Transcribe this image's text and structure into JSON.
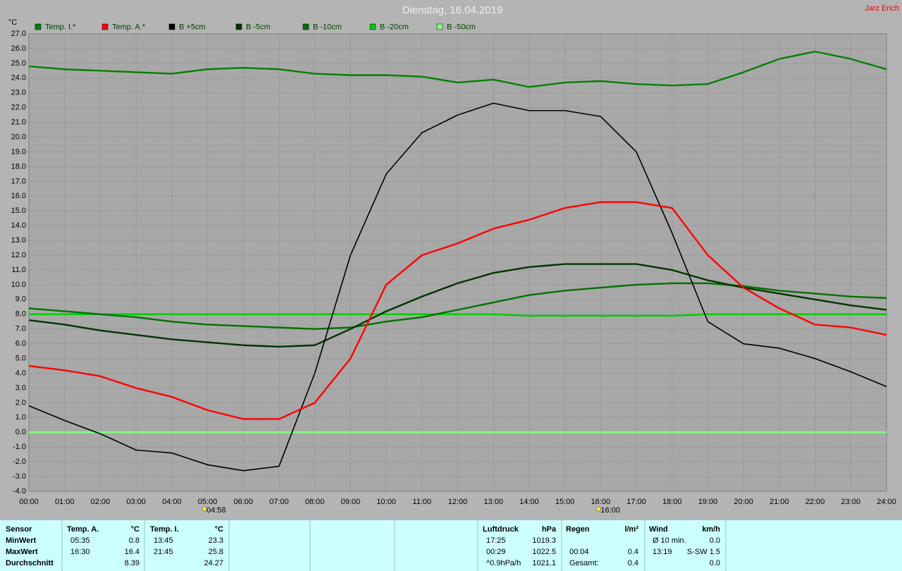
{
  "chart_data": {
    "type": "line",
    "title": "Dienstag, 16.04.2019",
    "author": "Jarz Erich",
    "y_unit": "°C",
    "x": [
      0,
      1,
      2,
      3,
      4,
      5,
      6,
      7,
      8,
      9,
      10,
      11,
      12,
      13,
      14,
      15,
      16,
      17,
      18,
      19,
      20,
      21,
      22,
      23,
      24
    ],
    "xlim": [
      0,
      24
    ],
    "xticks": [
      {
        "value": 0,
        "label": "00:00"
      },
      {
        "value": 1,
        "label": "01:00"
      },
      {
        "value": 2,
        "label": "02:00"
      },
      {
        "value": 3,
        "label": "03:00"
      },
      {
        "value": 4,
        "label": "04:00"
      },
      {
        "value": 5,
        "label": "05:00"
      },
      {
        "value": 6,
        "label": "06:00"
      },
      {
        "value": 7,
        "label": "07:00"
      },
      {
        "value": 8,
        "label": "08:00"
      },
      {
        "value": 9,
        "label": "09:00"
      },
      {
        "value": 10,
        "label": "10:00"
      },
      {
        "value": 11,
        "label": "11:00"
      },
      {
        "value": 12,
        "label": "12:00"
      },
      {
        "value": 13,
        "label": "13:00"
      },
      {
        "value": 14,
        "label": "14:00"
      },
      {
        "value": 15,
        "label": "15:00"
      },
      {
        "value": 16,
        "label": "16:00"
      },
      {
        "value": 17,
        "label": "17:00"
      },
      {
        "value": 18,
        "label": "18:00"
      },
      {
        "value": 19,
        "label": "19:00"
      },
      {
        "value": 20,
        "label": "20:00"
      },
      {
        "value": 21,
        "label": "21:00"
      },
      {
        "value": 22,
        "label": "22:00"
      },
      {
        "value": 23,
        "label": "23:00"
      },
      {
        "value": 24,
        "label": "24:00"
      }
    ],
    "ylim": [
      -4,
      27
    ],
    "yticks": [
      {
        "value": 27,
        "label": "27.0"
      },
      {
        "value": 26,
        "label": "26.0"
      },
      {
        "value": 25,
        "label": "25.0"
      },
      {
        "value": 24,
        "label": "24.0"
      },
      {
        "value": 23,
        "label": "23.0"
      },
      {
        "value": 22,
        "label": "22.0"
      },
      {
        "value": 21,
        "label": "21.0"
      },
      {
        "value": 20,
        "label": "20.0"
      },
      {
        "value": 19,
        "label": "19.0"
      },
      {
        "value": 18,
        "label": "18.0"
      },
      {
        "value": 17,
        "label": "17.0"
      },
      {
        "value": 16,
        "label": "16.0"
      },
      {
        "value": 15,
        "label": "15.0"
      },
      {
        "value": 14,
        "label": "14.0"
      },
      {
        "value": 13,
        "label": "13.0"
      },
      {
        "value": 12,
        "label": "12.0"
      },
      {
        "value": 11,
        "label": "11.0"
      },
      {
        "value": 10,
        "label": "10.0"
      },
      {
        "value": 9,
        "label": "9.0"
      },
      {
        "value": 8,
        "label": "8.0"
      },
      {
        "value": 7,
        "label": "7.0"
      },
      {
        "value": 6,
        "label": "6.0"
      },
      {
        "value": 5,
        "label": "5.0"
      },
      {
        "value": 4,
        "label": "4.0"
      },
      {
        "value": 3,
        "label": "3.0"
      },
      {
        "value": 2,
        "label": "2.0"
      },
      {
        "value": 1,
        "label": "1.0"
      },
      {
        "value": 0,
        "label": "0.0"
      },
      {
        "value": -1,
        "label": "-1.0"
      },
      {
        "value": -2,
        "label": "-2.0"
      },
      {
        "value": -3,
        "label": "-3.0"
      },
      {
        "value": -4,
        "label": "-4.0"
      }
    ],
    "grid": true,
    "annotations": [
      {
        "x": 4.97,
        "text": "04:58"
      },
      {
        "x": 16.0,
        "text": "16:00"
      }
    ],
    "series": [
      {
        "name": "Temp. I.*",
        "color": "#008000",
        "values": [
          24.8,
          24.6,
          24.5,
          24.4,
          24.3,
          24.6,
          24.7,
          24.6,
          24.3,
          24.2,
          24.2,
          24.1,
          23.7,
          23.9,
          23.4,
          23.7,
          23.8,
          23.6,
          23.5,
          23.6,
          24.4,
          25.3,
          25.8,
          25.3,
          24.6
        ]
      },
      {
        "name": "Temp. A.*",
        "color": "#ff0000",
        "values": [
          4.5,
          4.2,
          3.8,
          3.0,
          2.4,
          1.5,
          0.9,
          0.9,
          2.0,
          5.0,
          10.0,
          12.0,
          12.8,
          13.8,
          14.4,
          15.2,
          15.6,
          15.6,
          15.2,
          12.0,
          9.8,
          8.4,
          7.3,
          7.1,
          6.6
        ]
      },
      {
        "name": "B +5cm",
        "color": "#000000",
        "values": [
          1.8,
          0.8,
          -0.1,
          -1.2,
          -1.4,
          -2.2,
          -2.6,
          -2.3,
          4.0,
          12.0,
          17.5,
          20.3,
          21.5,
          22.3,
          21.8,
          21.8,
          21.4,
          19.0,
          13.5,
          7.5,
          6.0,
          5.7,
          5.0,
          4.1,
          3.1
        ]
      },
      {
        "name": "B -5cm",
        "color": "#003300",
        "values": [
          7.6,
          7.3,
          6.9,
          6.6,
          6.3,
          6.1,
          5.9,
          5.8,
          5.9,
          7.0,
          8.2,
          9.2,
          10.1,
          10.8,
          11.2,
          11.4,
          11.4,
          11.4,
          11.0,
          10.3,
          9.8,
          9.4,
          9.0,
          8.6,
          8.3
        ]
      },
      {
        "name": "B -10cm",
        "color": "#007000",
        "values": [
          8.4,
          8.2,
          8.0,
          7.8,
          7.5,
          7.3,
          7.2,
          7.1,
          7.0,
          7.1,
          7.5,
          7.8,
          8.3,
          8.8,
          9.3,
          9.6,
          9.8,
          10.0,
          10.1,
          10.1,
          9.9,
          9.6,
          9.4,
          9.2,
          9.1
        ]
      },
      {
        "name": "B -20cm",
        "color": "#00cc00",
        "values": [
          8.0,
          8.0,
          8.0,
          8.0,
          8.0,
          8.0,
          8.0,
          8.0,
          8.0,
          8.0,
          8.0,
          8.0,
          8.0,
          8.0,
          7.9,
          7.9,
          7.9,
          7.9,
          7.9,
          8.0,
          8.0,
          8.0,
          8.0,
          8.0,
          8.0
        ]
      },
      {
        "name": "B -50cm",
        "color": "#80ff80",
        "values": [
          0,
          0,
          0,
          0,
          0,
          0,
          0,
          0,
          0,
          0,
          0,
          0,
          0,
          0,
          0,
          0,
          0,
          0,
          0,
          0,
          0,
          0,
          0,
          0,
          0
        ]
      }
    ]
  },
  "table": {
    "sensor": {
      "title": "Sensor",
      "min": "MinWert",
      "max": "MaxWert",
      "avg": "Durchschnitt"
    },
    "groups": [
      {
        "title": "Temp. A.",
        "unit": "°C",
        "min": {
          "time": "05:35",
          "value": "0.8"
        },
        "max": {
          "time": "16:30",
          "value": "16.4"
        },
        "avg": {
          "value": "8.39"
        }
      },
      {
        "title": "Temp. I.",
        "unit": "°C",
        "min": {
          "time": "13:45",
          "value": "23.3"
        },
        "max": {
          "time": "21:45",
          "value": "25.8"
        },
        "avg": {
          "value": "24.27"
        }
      },
      {
        "title": "Luftdruck",
        "unit": "hPa",
        "min": {
          "time": "17:25",
          "value": "1019.3"
        },
        "max": {
          "time": "00:29",
          "value": "1022.5"
        },
        "avg": {
          "time": "^0.9hPa/h",
          "value": "1021.1"
        }
      },
      {
        "title": "Regen",
        "unit": "l/m²",
        "max": {
          "time": "00:04",
          "value": "0.4"
        },
        "avg": {
          "time": "Gesamt:",
          "value": "0.4"
        }
      },
      {
        "title": "Wind",
        "unit": "km/h",
        "min": {
          "time": "Ø 10 min.",
          "value": "0.0"
        },
        "max": {
          "time": "13:19",
          "value": "S-SW 1.5"
        },
        "avg": {
          "value": "0.0"
        }
      }
    ]
  }
}
